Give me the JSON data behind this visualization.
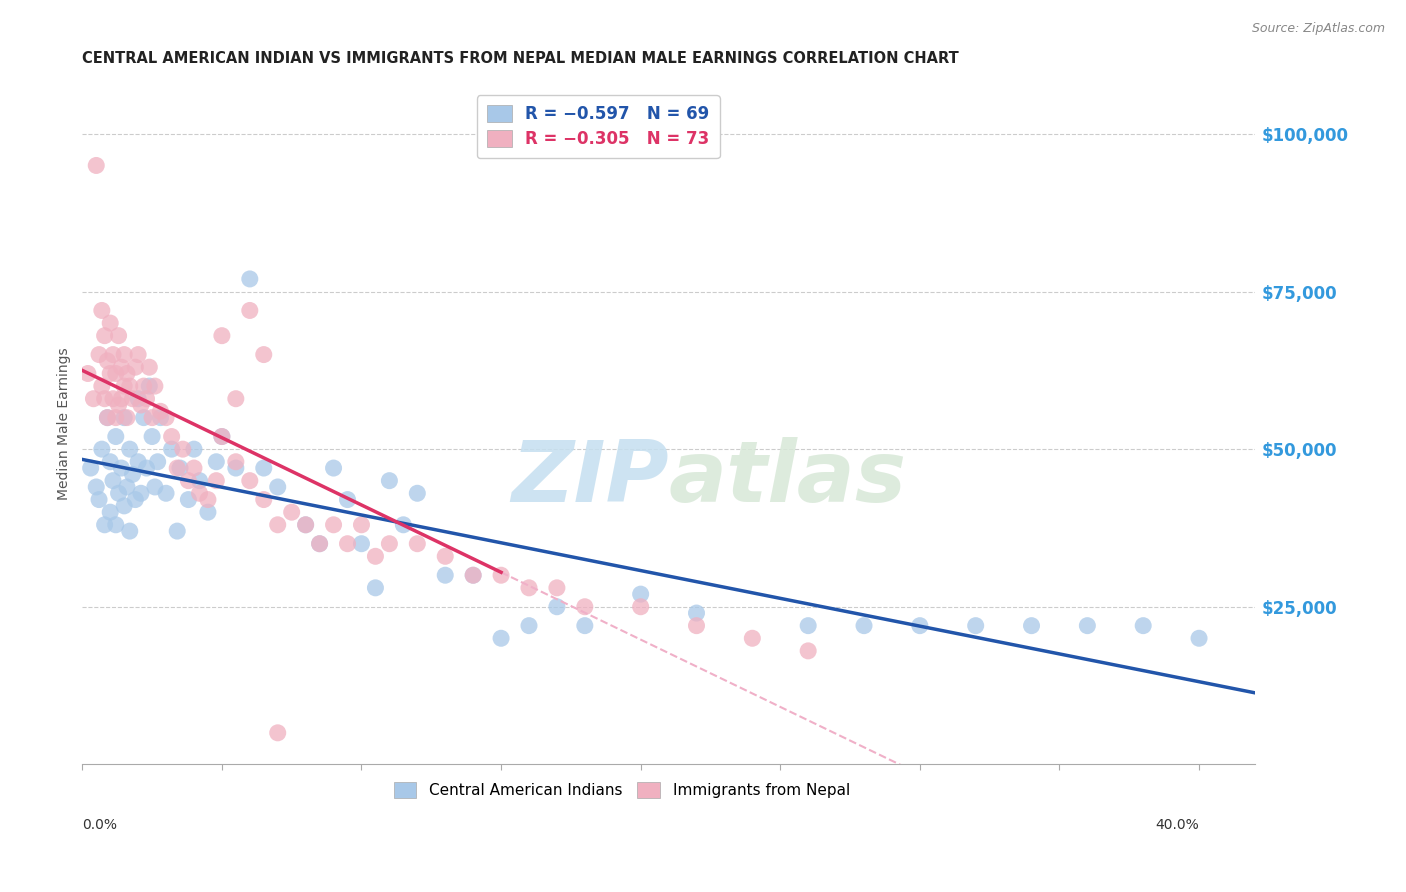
{
  "title": "CENTRAL AMERICAN INDIAN VS IMMIGRANTS FROM NEPAL MEDIAN MALE EARNINGS CORRELATION CHART",
  "source": "Source: ZipAtlas.com",
  "ylabel": "Median Male Earnings",
  "xlim": [
    0.0,
    0.42
  ],
  "ylim": [
    0,
    108000
  ],
  "color_blue": "#a8c8e8",
  "color_pink": "#f0b0c0",
  "line_blue": "#2255aa",
  "line_pink": "#dd3366",
  "line_pink_dashed": "#f0b0c8",
  "watermark_zip": "ZIP",
  "watermark_atlas": "atlas",
  "blue_x": [
    0.003,
    0.005,
    0.006,
    0.007,
    0.008,
    0.009,
    0.01,
    0.01,
    0.011,
    0.012,
    0.012,
    0.013,
    0.014,
    0.015,
    0.015,
    0.016,
    0.017,
    0.017,
    0.018,
    0.019,
    0.02,
    0.02,
    0.021,
    0.022,
    0.023,
    0.024,
    0.025,
    0.026,
    0.027,
    0.028,
    0.03,
    0.032,
    0.034,
    0.035,
    0.038,
    0.04,
    0.042,
    0.045,
    0.048,
    0.05,
    0.055,
    0.06,
    0.065,
    0.07,
    0.08,
    0.085,
    0.09,
    0.095,
    0.1,
    0.105,
    0.11,
    0.115,
    0.12,
    0.13,
    0.14,
    0.15,
    0.16,
    0.17,
    0.18,
    0.2,
    0.22,
    0.26,
    0.28,
    0.3,
    0.32,
    0.34,
    0.36,
    0.38,
    0.4
  ],
  "blue_y": [
    47000,
    44000,
    42000,
    50000,
    38000,
    55000,
    48000,
    40000,
    45000,
    38000,
    52000,
    43000,
    47000,
    55000,
    41000,
    44000,
    50000,
    37000,
    46000,
    42000,
    58000,
    48000,
    43000,
    55000,
    47000,
    60000,
    52000,
    44000,
    48000,
    55000,
    43000,
    50000,
    37000,
    47000,
    42000,
    50000,
    45000,
    40000,
    48000,
    52000,
    47000,
    77000,
    47000,
    44000,
    38000,
    35000,
    47000,
    42000,
    35000,
    28000,
    45000,
    38000,
    43000,
    30000,
    30000,
    20000,
    22000,
    25000,
    22000,
    27000,
    24000,
    22000,
    22000,
    22000,
    22000,
    22000,
    22000,
    22000,
    20000
  ],
  "pink_x": [
    0.002,
    0.004,
    0.005,
    0.006,
    0.007,
    0.007,
    0.008,
    0.008,
    0.009,
    0.009,
    0.01,
    0.01,
    0.011,
    0.011,
    0.012,
    0.012,
    0.013,
    0.013,
    0.014,
    0.014,
    0.015,
    0.015,
    0.016,
    0.016,
    0.017,
    0.018,
    0.019,
    0.02,
    0.021,
    0.022,
    0.023,
    0.024,
    0.025,
    0.026,
    0.028,
    0.03,
    0.032,
    0.034,
    0.036,
    0.038,
    0.04,
    0.042,
    0.045,
    0.048,
    0.05,
    0.055,
    0.06,
    0.065,
    0.07,
    0.075,
    0.08,
    0.085,
    0.09,
    0.095,
    0.1,
    0.105,
    0.11,
    0.12,
    0.13,
    0.14,
    0.15,
    0.16,
    0.17,
    0.18,
    0.2,
    0.22,
    0.24,
    0.26,
    0.05,
    0.06,
    0.055,
    0.065,
    0.07
  ],
  "pink_y": [
    62000,
    58000,
    95000,
    65000,
    72000,
    60000,
    68000,
    58000,
    64000,
    55000,
    62000,
    70000,
    58000,
    65000,
    62000,
    55000,
    68000,
    57000,
    63000,
    58000,
    60000,
    65000,
    55000,
    62000,
    60000,
    58000,
    63000,
    65000,
    57000,
    60000,
    58000,
    63000,
    55000,
    60000,
    56000,
    55000,
    52000,
    47000,
    50000,
    45000,
    47000,
    43000,
    42000,
    45000,
    52000,
    48000,
    45000,
    42000,
    38000,
    40000,
    38000,
    35000,
    38000,
    35000,
    38000,
    33000,
    35000,
    35000,
    33000,
    30000,
    30000,
    28000,
    28000,
    25000,
    25000,
    22000,
    20000,
    18000,
    68000,
    72000,
    58000,
    65000,
    5000
  ]
}
